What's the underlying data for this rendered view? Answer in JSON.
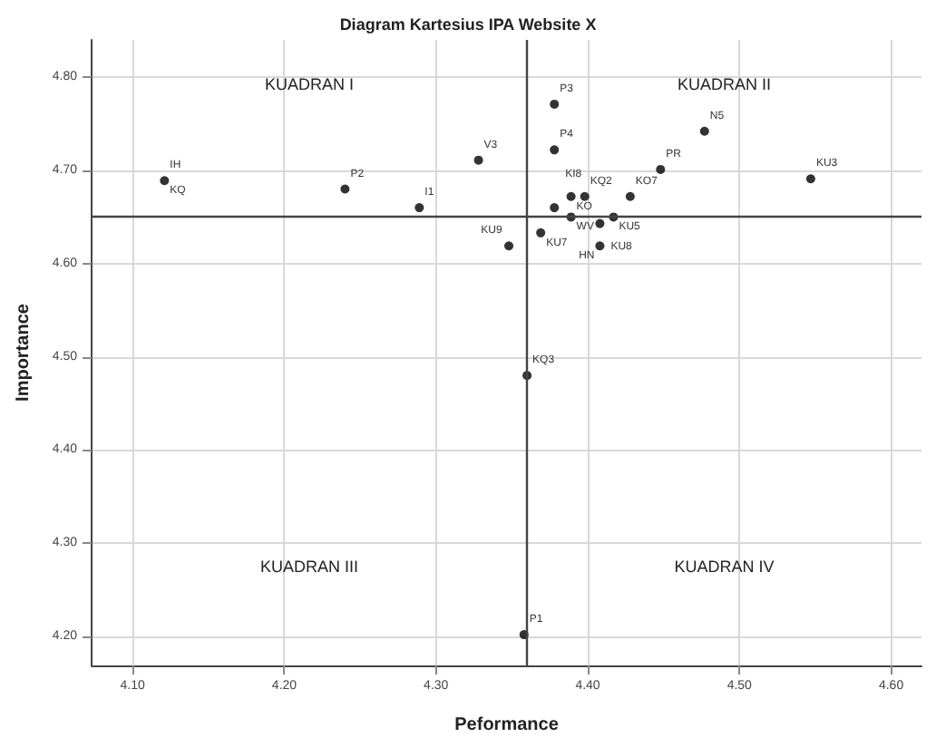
{
  "chart_data": {
    "type": "scatter",
    "title": "Diagram Kartesius IPA Website X",
    "xlabel": "Peformance",
    "ylabel": "Importance",
    "x": [
      4.121,
      4.24,
      4.289,
      4.328,
      4.378,
      4.378,
      4.477,
      4.448,
      4.547,
      4.378,
      4.389,
      4.398,
      4.389,
      4.428,
      4.417,
      4.408,
      4.408,
      4.369,
      4.348,
      4.36,
      4.358
    ],
    "series": [
      {
        "color": "#000000",
        "values": [
          4.689,
          4.68,
          4.66,
          4.711,
          4.771,
          4.722,
          4.742,
          4.701,
          4.691,
          4.66,
          4.672,
          4.672,
          4.65,
          4.672,
          4.65,
          4.643,
          4.619,
          4.633,
          4.619,
          4.48,
          4.202
        ]
      }
    ],
    "xlim": [
      4.073,
      4.62
    ],
    "ylim": [
      4.169,
      4.84
    ],
    "xticks": [
      {
        "value": 4.1,
        "label": "4.10"
      },
      {
        "value": 4.2,
        "label": "4.20"
      },
      {
        "value": 4.3,
        "label": "4.30"
      },
      {
        "value": 4.4,
        "label": "4.40"
      },
      {
        "value": 4.5,
        "label": "4.50"
      },
      {
        "value": 4.6,
        "label": "4.60"
      }
    ],
    "yticks": [
      {
        "value": 4.2,
        "label": "4.20"
      },
      {
        "value": 4.3,
        "label": "4.30"
      },
      {
        "value": 4.4,
        "label": "4.40"
      },
      {
        "value": 4.5,
        "label": "4.50"
      },
      {
        "value": 4.6,
        "label": "4.60"
      },
      {
        "value": 4.7,
        "label": "4.70"
      },
      {
        "value": 4.8,
        "label": "4.80"
      }
    ],
    "grid": true,
    "marker": "circle",
    "ref_lines": [
      {
        "axis": "x",
        "value": 4.36,
        "color": "#444444"
      },
      {
        "axis": "y",
        "value": 4.65,
        "color": "#444444"
      }
    ],
    "annotations": [
      "KUADRAN I",
      "KUADRAN II",
      "KUADRAN III",
      "KUADRAN IV",
      {
        "text": "IH",
        "x": 4.121,
        "y": 4.689
      },
      {
        "text": "KQ",
        "x": 4.121,
        "y": 4.689
      },
      {
        "text": "P2",
        "x": 4.24,
        "y": 4.68
      },
      {
        "text": "I1",
        "x": 4.289,
        "y": 4.66
      },
      {
        "text": "V3",
        "x": 4.328,
        "y": 4.711
      },
      {
        "text": "P3",
        "x": 4.378,
        "y": 4.771
      },
      {
        "text": "P4",
        "x": 4.378,
        "y": 4.722
      },
      {
        "text": "N5",
        "x": 4.477,
        "y": 4.742
      },
      {
        "text": "PR",
        "x": 4.448,
        "y": 4.701
      },
      {
        "text": "KU3",
        "x": 4.547,
        "y": 4.691
      },
      {
        "text": "KI8",
        "x": 4.378,
        "y": 4.66
      },
      {
        "text": "KO",
        "x": 4.389,
        "y": 4.672
      },
      {
        "text": "KQ2",
        "x": 4.398,
        "y": 4.672
      },
      {
        "text": "WV",
        "x": 4.389,
        "y": 4.65
      },
      {
        "text": "KO7",
        "x": 4.428,
        "y": 4.672
      },
      {
        "text": "KU5",
        "x": 4.417,
        "y": 4.65
      },
      {
        "text": "KU8",
        "x": 4.408,
        "y": 4.643
      },
      {
        "text": "HN",
        "x": 4.408,
        "y": 4.619
      },
      {
        "text": "KU7",
        "x": 4.369,
        "y": 4.633
      },
      {
        "text": "KU9",
        "x": 4.348,
        "y": 4.619
      },
      {
        "text": "KQ3",
        "x": 4.36,
        "y": 4.48
      },
      {
        "text": "P1",
        "x": 4.358,
        "y": 4.202
      }
    ]
  }
}
